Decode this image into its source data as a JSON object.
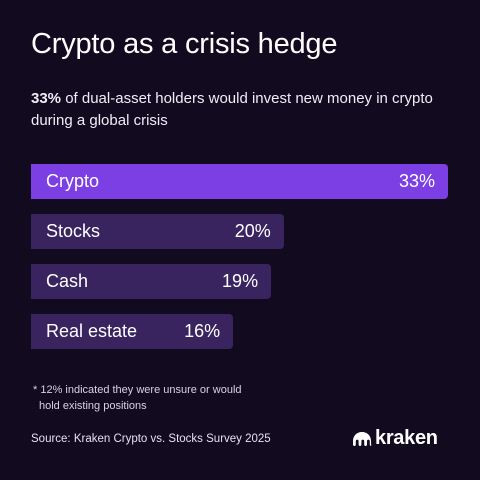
{
  "header": {
    "title": "Crypto as a crisis hedge",
    "subtitle_bold": "33%",
    "subtitle_rest": " of dual-asset holders would invest new money in crypto during a global crisis"
  },
  "chart_data": {
    "type": "bar",
    "orientation": "horizontal",
    "categories": [
      "Crypto",
      "Stocks",
      "Cash",
      "Real estate"
    ],
    "values": [
      33,
      20,
      19,
      16
    ],
    "value_labels": [
      "33%",
      "20%",
      "19%",
      "16%"
    ],
    "highlight_index": 0,
    "colors": {
      "highlight": "#7b3fe4",
      "default": "#3a2460"
    },
    "grid": false
  },
  "footnote": {
    "line1": "* 12% indicated they were unsure or would",
    "line2": "hold existing positions"
  },
  "source": "Source: Kraken Crypto vs. Stocks Survey 2025",
  "logo": {
    "text": "kraken",
    "icon": "kraken-logo-icon"
  }
}
